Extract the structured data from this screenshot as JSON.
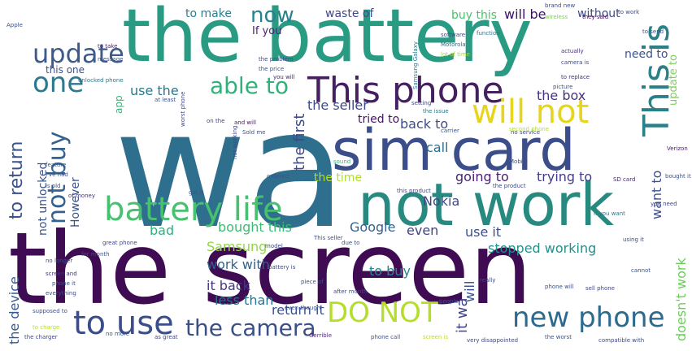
{
  "words": [
    {
      "text": "wa",
      "color": "#2f6f8e"
    },
    {
      "text": "the screen",
      "color": "#3f0b52"
    },
    {
      "text": "the battery",
      "color": "#2a9b83"
    },
    {
      "text": "sim card",
      "color": "#3b4e8a"
    },
    {
      "text": "not work",
      "color": "#27897f"
    },
    {
      "text": "This phone",
      "color": "#45205f"
    },
    {
      "text": "battery life",
      "color": "#47c06f"
    },
    {
      "text": "update",
      "color": "#3d5a8c"
    },
    {
      "text": "one",
      "color": "#30788d"
    },
    {
      "text": "able to",
      "color": "#33b17a"
    },
    {
      "text": "will not",
      "color": "#e6d51a"
    },
    {
      "text": "This is",
      "color": "#2b7f86"
    },
    {
      "text": "the camera",
      "color": "#3b5087"
    },
    {
      "text": "new phone",
      "color": "#2d6a8e"
    },
    {
      "text": "DO NOT",
      "color": "#b5de2b"
    },
    {
      "text": "to use",
      "color": "#3c4e89"
    },
    {
      "text": "now",
      "color": "#25838e"
    },
    {
      "text": "not buy",
      "color": "#34618d"
    },
    {
      "text": "to return",
      "color": "#3b528b"
    },
    {
      "text": "buy this",
      "color": "#4ac16d"
    },
    {
      "text": "to make",
      "color": "#2c7e8e"
    },
    {
      "text": "waste of",
      "color": "#3f4889"
    },
    {
      "text": "will be",
      "color": "#3b0f70"
    },
    {
      "text": "without",
      "color": "#3e4a89"
    },
    {
      "text": "need to",
      "color": "#3a548c"
    },
    {
      "text": "update to",
      "color": "#7ad151"
    },
    {
      "text": "If you",
      "color": "#482172"
    },
    {
      "text": "this one",
      "color": "#3b528b"
    },
    {
      "text": "use the",
      "color": "#2a788e"
    },
    {
      "text": "app",
      "color": "#35b779"
    },
    {
      "text": "the box",
      "color": "#46327e"
    },
    {
      "text": "the seller",
      "color": "#3f4889"
    },
    {
      "text": "the first",
      "color": "#3e4989"
    },
    {
      "text": "tried to",
      "color": "#471365"
    },
    {
      "text": "back to",
      "color": "#3e4c8a"
    },
    {
      "text": "call",
      "color": "#2e6e8e"
    },
    {
      "text": "the time",
      "color": "#b0dd2f"
    },
    {
      "text": "going to",
      "color": "#481f70"
    },
    {
      "text": "trying to",
      "color": "#433e85"
    },
    {
      "text": "want to",
      "color": "#3c508b"
    },
    {
      "text": "Nokia",
      "color": "#404688"
    },
    {
      "text": "not unlocked",
      "color": "#3a548c"
    },
    {
      "text": "However",
      "color": "#3b528b"
    },
    {
      "text": "bad",
      "color": "#2db27d"
    },
    {
      "text": "bought this",
      "color": "#3dbc74"
    },
    {
      "text": "Google",
      "color": "#34618d"
    },
    {
      "text": "even",
      "color": "#414487"
    },
    {
      "text": "use it",
      "color": "#3c4f8a"
    },
    {
      "text": "stopped working",
      "color": "#21918c"
    },
    {
      "text": "Samsung",
      "color": "#8fd744"
    },
    {
      "text": "work with",
      "color": "#34618d"
    },
    {
      "text": "to buy",
      "color": "#23888e"
    },
    {
      "text": "it back",
      "color": "#453781"
    },
    {
      "text": "less than",
      "color": "#2c728e"
    },
    {
      "text": "return it",
      "color": "#3b528b"
    },
    {
      "text": "the device",
      "color": "#38598c"
    },
    {
      "text": "doesn't work",
      "color": "#6ccd5a"
    },
    {
      "text": "will",
      "color": "#3a538b"
    },
    {
      "text": "it wa",
      "color": "#414487"
    },
    {
      "text": "Apple",
      "color": "#3b528b"
    },
    {
      "text": "brand new",
      "color": "#3e4989"
    },
    {
      "text": "wireless",
      "color": "#7ad151"
    },
    {
      "text": "they said",
      "color": "#46085c"
    },
    {
      "text": "to work",
      "color": "#3e4a89"
    },
    {
      "text": "function",
      "color": "#2c728e"
    },
    {
      "text": "to send",
      "color": "#3b528b"
    },
    {
      "text": "software",
      "color": "#3e4989"
    },
    {
      "text": "Motorola",
      "color": "#31688e"
    },
    {
      "text": "lot of time",
      "color": "#a0da39"
    },
    {
      "text": "actually",
      "color": "#46327e"
    },
    {
      "text": "camera is",
      "color": "#3e4a89"
    },
    {
      "text": "to replace",
      "color": "#472d7b"
    },
    {
      "text": "picture",
      "color": "#3b528b"
    },
    {
      "text": "Samsung Galaxy",
      "color": "#2c728e"
    },
    {
      "text": "the problem",
      "color": "#3e4989"
    },
    {
      "text": "the price",
      "color": "#3b528b"
    },
    {
      "text": "you will",
      "color": "#482878"
    },
    {
      "text": "unlocked phone",
      "color": "#2a788e"
    },
    {
      "text": "message",
      "color": "#3b528b"
    },
    {
      "text": "to take",
      "color": "#482172"
    },
    {
      "text": "setting",
      "color": "#3e4989"
    },
    {
      "text": "the issue",
      "color": "#2a788e"
    },
    {
      "text": "carrier",
      "color": "#3b528b"
    },
    {
      "text": "second phone",
      "color": "#b5de2b"
    },
    {
      "text": "on the",
      "color": "#3e4989"
    },
    {
      "text": "and will",
      "color": "#471365"
    },
    {
      "text": "Sold me",
      "color": "#3b528b"
    },
    {
      "text": "not working",
      "color": "#3e4989"
    },
    {
      "text": "sound",
      "color": "#35b779"
    },
    {
      "text": "Mobile",
      "color": "#3b528b"
    },
    {
      "text": "the product",
      "color": "#3e4989"
    },
    {
      "text": "SD card",
      "color": "#482878"
    },
    {
      "text": "bought it",
      "color": "#3b528b"
    },
    {
      "text": "if you want",
      "color": "#2c728e"
    },
    {
      "text": "at least",
      "color": "#3b528b"
    },
    {
      "text": "you need",
      "color": "#3e4989"
    },
    {
      "text": "Verizon",
      "color": "#482172"
    },
    {
      "text": "feature",
      "color": "#3b528b"
    },
    {
      "text": "I've had",
      "color": "#3e4989"
    },
    {
      "text": "is old",
      "color": "#3b528b"
    },
    {
      "text": "of money",
      "color": "#46327e"
    },
    {
      "text": "got it",
      "color": "#3b528b"
    },
    {
      "text": "this product",
      "color": "#3e4989"
    },
    {
      "text": "ordered",
      "color": "#3b528b"
    },
    {
      "text": "worst phone",
      "color": "#3e4989"
    },
    {
      "text": "no longer",
      "color": "#3b528b"
    },
    {
      "text": "screen and",
      "color": "#46327e"
    },
    {
      "text": "phone it",
      "color": "#3b528b"
    },
    {
      "text": "everything",
      "color": "#3e4989"
    },
    {
      "text": "supposed to",
      "color": "#3b528b"
    },
    {
      "text": "to charge",
      "color": "#b5de2b"
    },
    {
      "text": "the charger",
      "color": "#3e4989"
    },
    {
      "text": "no more",
      "color": "#3b528b"
    },
    {
      "text": "as great",
      "color": "#3e4989"
    },
    {
      "text": "Gerrible",
      "color": "#472d7b"
    },
    {
      "text": "phone call",
      "color": "#3b528b"
    },
    {
      "text": "screen is",
      "color": "#b5de2b"
    },
    {
      "text": "very disappointed",
      "color": "#3e4989"
    },
    {
      "text": "the worst",
      "color": "#3b528b"
    },
    {
      "text": "compatible with",
      "color": "#3e4989"
    },
    {
      "text": "piece of",
      "color": "#3b528b"
    },
    {
      "text": "after month",
      "color": "#3e4989"
    },
    {
      "text": "people",
      "color": "#3b528b"
    },
    {
      "text": "really",
      "color": "#3e4989"
    },
    {
      "text": "phone will",
      "color": "#3b528b"
    },
    {
      "text": "sell phone",
      "color": "#3e4989"
    },
    {
      "text": "even though",
      "color": "#3b528b"
    },
    {
      "text": "battery is",
      "color": "#3e4989"
    },
    {
      "text": "This seller",
      "color": "#3b528b"
    },
    {
      "text": "model",
      "color": "#3e4989"
    },
    {
      "text": "due to",
      "color": "#3b528b"
    },
    {
      "text": "great phone",
      "color": "#3e4989"
    },
    {
      "text": "for month",
      "color": "#3b528b"
    },
    {
      "text": "no service",
      "color": "#3e4989"
    },
    {
      "text": "cannot",
      "color": "#3b528b"
    },
    {
      "text": "using it",
      "color": "#3e4989"
    }
  ]
}
